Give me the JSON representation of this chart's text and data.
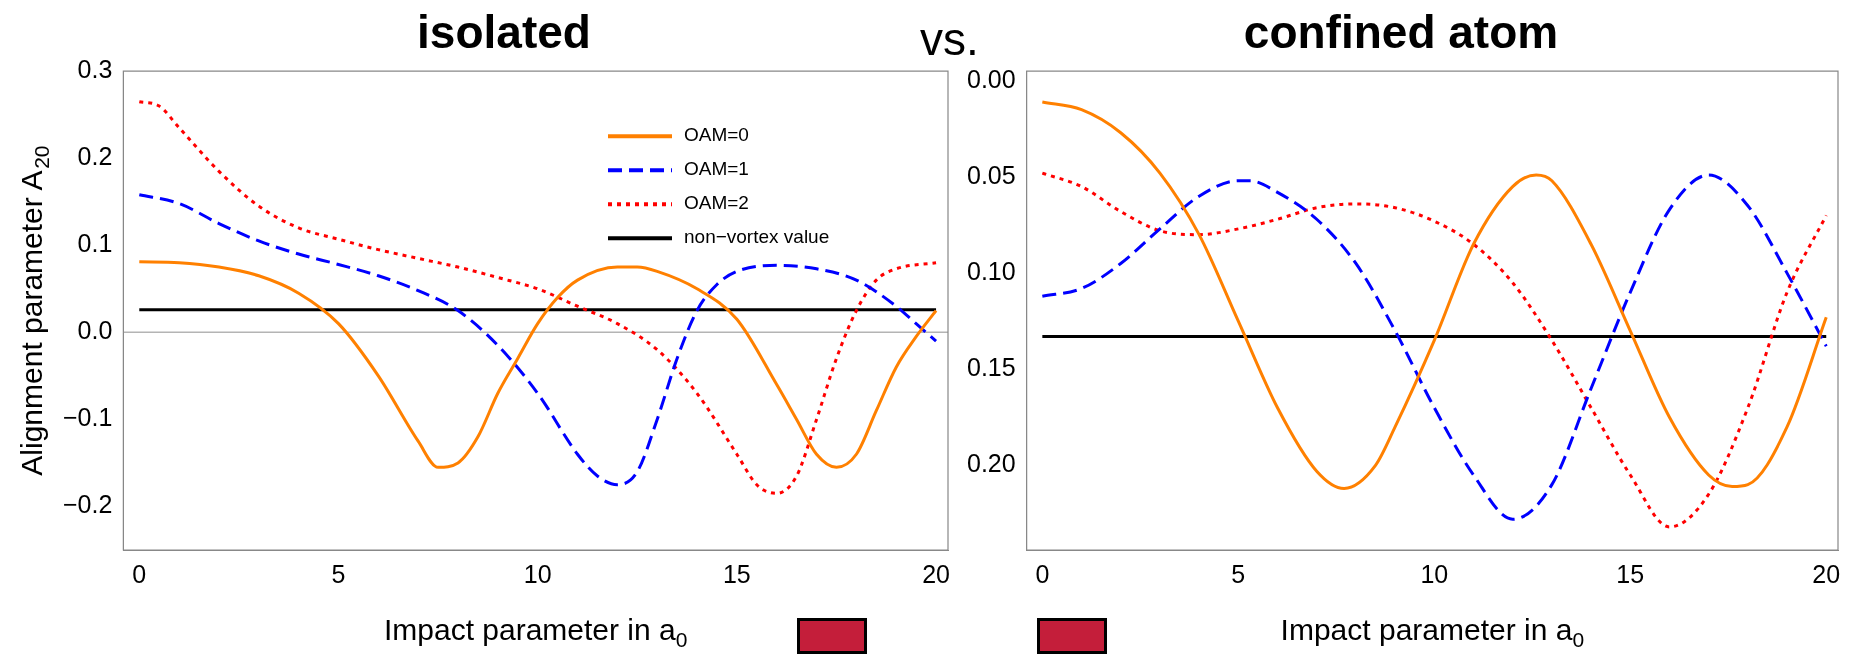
{
  "chart_data": [
    {
      "type": "line",
      "title": "isolated",
      "xlabel": "Impact parameter in a$_{0}$",
      "ylabel": "Alignment parameter A$_{20}$",
      "annotations": [
        "vs."
      ],
      "legend": "top right",
      "grid": false,
      "xlim": [
        -0.4,
        20.3
      ],
      "xticks": [
        0,
        5,
        10,
        15,
        20
      ],
      "ylim": [
        -0.25,
        0.3
      ],
      "yticks": [
        {
          "value": -0.2,
          "label": "−0.2"
        },
        {
          "value": -0.1,
          "label": "−0.1"
        },
        {
          "value": 0,
          "label": "0.0"
        },
        0.1,
        0.2,
        0.3
      ],
      "ref_lines": [
        {
          "axis": "y",
          "value": 0,
          "color": "#b4b4b4"
        }
      ],
      "series": [
        {
          "name": "OAM=0",
          "color": "#ff8000",
          "line_style": "solid",
          "x": [
            0,
            1,
            2,
            3,
            4,
            5,
            6,
            7,
            7.5,
            8,
            8.5,
            9,
            9.5,
            10,
            10.5,
            11,
            12,
            12.5,
            13,
            14,
            15,
            16,
            16.5,
            17,
            17.5,
            18,
            18.5,
            19,
            19.5,
            20
          ],
          "values": [
            0.081,
            0.08,
            0.075,
            0.065,
            0.045,
            0.01,
            -0.05,
            -0.125,
            -0.155,
            -0.15,
            -0.12,
            -0.07,
            -0.03,
            0.01,
            0.04,
            0.06,
            0.075,
            0.075,
            0.07,
            0.05,
            0.015,
            -0.06,
            -0.1,
            -0.14,
            -0.155,
            -0.14,
            -0.09,
            -0.04,
            -0.005,
            0.025
          ]
        },
        {
          "name": "OAM=1",
          "color": "#0000ff",
          "line_style": "dashed",
          "x": [
            0,
            1,
            2,
            3,
            4,
            5,
            6,
            7,
            8,
            9,
            10,
            11,
            11.5,
            12,
            12.5,
            13,
            13.5,
            14,
            14.5,
            15,
            16,
            17,
            18,
            19,
            19.5,
            20
          ],
          "values": [
            0.158,
            0.148,
            0.125,
            0.105,
            0.09,
            0.078,
            0.065,
            0.048,
            0.025,
            -0.015,
            -0.07,
            -0.14,
            -0.165,
            -0.175,
            -0.16,
            -0.1,
            -0.03,
            0.025,
            0.055,
            0.07,
            0.077,
            0.073,
            0.06,
            0.03,
            0.01,
            -0.01
          ]
        },
        {
          "name": "OAM=2",
          "color": "#ff0000",
          "line_style": "dotted",
          "x": [
            0,
            0.5,
            1,
            2,
            3,
            4,
            5,
            6,
            7,
            8,
            9,
            10,
            11,
            12,
            13,
            14,
            15,
            15.5,
            16,
            16.5,
            17,
            17.5,
            18,
            18.5,
            19,
            20
          ],
          "values": [
            0.265,
            0.26,
            0.235,
            0.185,
            0.145,
            0.12,
            0.107,
            0.095,
            0.085,
            0.075,
            0.063,
            0.05,
            0.03,
            0.01,
            -0.02,
            -0.07,
            -0.14,
            -0.175,
            -0.185,
            -0.165,
            -0.1,
            -0.03,
            0.025,
            0.06,
            0.073,
            0.08
          ]
        },
        {
          "name": "non−vortex value",
          "color": "#000000",
          "line_style": "solid",
          "x": [
            0,
            20
          ],
          "values": [
            0.026,
            0.026
          ]
        }
      ]
    },
    {
      "type": "line",
      "title": "confined atom",
      "xlabel": "Impact parameter in a$_{0}$",
      "grid": false,
      "xlim": [
        -0.4,
        20.3
      ],
      "xticks": [
        0,
        5,
        10,
        15,
        20
      ],
      "ylim": [
        0.244,
        -0.005
      ],
      "yticks": [
        {
          "value": 0,
          "label": "0.00"
        },
        {
          "value": 0.05,
          "label": "0.05"
        },
        {
          "value": 0.1,
          "label": "0.10"
        },
        {
          "value": 0.15,
          "label": "0.15"
        },
        {
          "value": 0.2,
          "label": "0.20"
        }
      ],
      "series": [
        {
          "color": "#ff8000",
          "line_style": "solid",
          "x": [
            0,
            1,
            2,
            3,
            4,
            5,
            6,
            7,
            7.7,
            8.5,
            9,
            10,
            11,
            12,
            12.6,
            13,
            14,
            15,
            16,
            17,
            17.6,
            18,
            19,
            20
          ],
          "values": [
            0.011,
            0.015,
            0.027,
            0.048,
            0.08,
            0.125,
            0.17,
            0.203,
            0.212,
            0.2,
            0.18,
            0.135,
            0.085,
            0.055,
            0.049,
            0.052,
            0.085,
            0.13,
            0.175,
            0.205,
            0.211,
            0.21,
            0.18,
            0.123
          ]
        },
        {
          "color": "#0000ff",
          "line_style": "dashed",
          "x": [
            0,
            1,
            2,
            3,
            4,
            5,
            5.3,
            6,
            7,
            8,
            9,
            10,
            11,
            12,
            13,
            14,
            15,
            16,
            17,
            18,
            19,
            20
          ],
          "values": [
            0.112,
            0.108,
            0.095,
            0.077,
            0.06,
            0.052,
            0.052,
            0.058,
            0.072,
            0.095,
            0.13,
            0.17,
            0.205,
            0.228,
            0.21,
            0.16,
            0.11,
            0.067,
            0.049,
            0.065,
            0.1,
            0.138
          ]
        },
        {
          "color": "#ff0000",
          "line_style": "dotted",
          "x": [
            0,
            1,
            2,
            3,
            4,
            5,
            6,
            7,
            8,
            9,
            10,
            11,
            12,
            13,
            14,
            15,
            16,
            17,
            18,
            19,
            20
          ],
          "values": [
            0.048,
            0.055,
            0.068,
            0.078,
            0.08,
            0.077,
            0.072,
            0.066,
            0.064,
            0.066,
            0.073,
            0.085,
            0.105,
            0.135,
            0.17,
            0.205,
            0.232,
            0.215,
            0.17,
            0.11,
            0.07
          ]
        },
        {
          "color": "#000000",
          "line_style": "solid",
          "x": [
            0,
            20
          ],
          "values": [
            0.133,
            0.133
          ]
        }
      ]
    }
  ]
}
